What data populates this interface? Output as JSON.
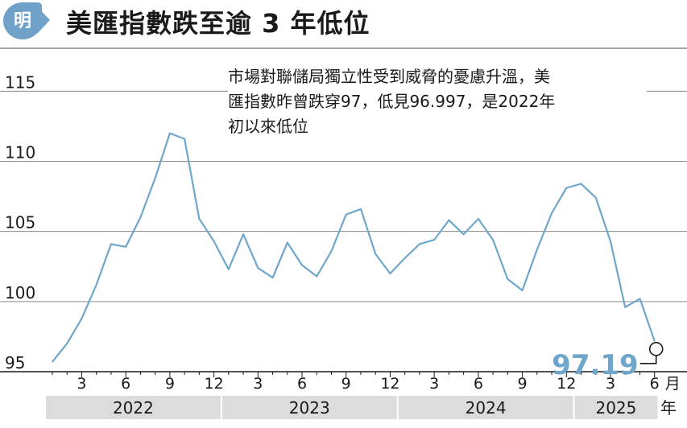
{
  "header": {
    "badge_text": "明",
    "title": "美匯指數跌至逾 3 年低位"
  },
  "annotation": {
    "lines": [
      "市場對聯儲局獨立性受到威脅的憂慮升溫，美",
      "匯指數昨曾跌穿97，低見96.997，是2022年",
      "初以來低位"
    ]
  },
  "chart_data": {
    "type": "line",
    "title": "美匯指數跌至逾 3 年低位",
    "y_ticks": [
      "115",
      "110",
      "105",
      "100",
      "95"
    ],
    "y_tick_values": [
      115,
      110,
      105,
      100,
      95
    ],
    "ylim": [
      95,
      117.6
    ],
    "x_tick_labels": [
      "3",
      "6",
      "9",
      "12",
      "3",
      "6",
      "9",
      "12",
      "3",
      "6",
      "9",
      "12",
      "3",
      "6"
    ],
    "x_month_unit": "月",
    "years": [
      "2022",
      "2023",
      "2024",
      "2025"
    ],
    "year_unit": "年",
    "grid": true,
    "line_color": "#6fa6cc",
    "series": [
      {
        "x": [
          "2022-01",
          "2022-02",
          "2022-03",
          "2022-04",
          "2022-05",
          "2022-06",
          "2022-07",
          "2022-08",
          "2022-09",
          "2022-10",
          "2022-11",
          "2022-12",
          "2023-01",
          "2023-02",
          "2023-03",
          "2023-04",
          "2023-05",
          "2023-06",
          "2023-07",
          "2023-08",
          "2023-09",
          "2023-10",
          "2023-11",
          "2023-12",
          "2024-01",
          "2024-02",
          "2024-03",
          "2024-04",
          "2024-05",
          "2024-06",
          "2024-07",
          "2024-08",
          "2024-09",
          "2024-10",
          "2024-11",
          "2024-12",
          "2025-01",
          "2025-02",
          "2025-03",
          "2025-04",
          "2025-05",
          "2025-06"
        ],
        "values": [
          95.7,
          97.0,
          98.8,
          101.2,
          104.1,
          103.9,
          106.0,
          108.8,
          112.0,
          111.6,
          105.9,
          104.3,
          102.3,
          104.8,
          102.4,
          101.7,
          104.2,
          102.6,
          101.8,
          103.6,
          106.2,
          106.6,
          103.4,
          102.0,
          103.1,
          104.1,
          104.4,
          105.8,
          104.8,
          105.9,
          104.4,
          101.6,
          100.8,
          103.7,
          106.3,
          108.1,
          108.4,
          107.4,
          104.3,
          99.6,
          100.2,
          97.19
        ]
      }
    ],
    "last_value_label": "97.19"
  }
}
